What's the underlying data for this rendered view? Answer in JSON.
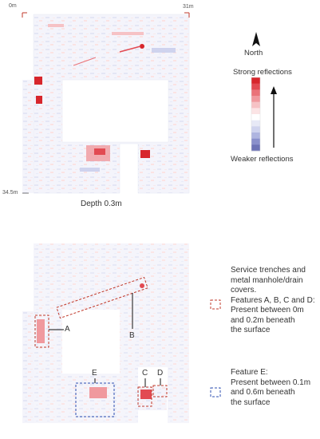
{
  "top_map": {
    "origin_label": "0m",
    "width_label": "31m",
    "height_label": "34.5m",
    "caption": "Depth 0.3m"
  },
  "north": {
    "label": "North"
  },
  "colorbar": {
    "top_label": "Strong reflections",
    "bottom_label": "Weaker reflections",
    "colors": [
      "#d7262c",
      "#e24a52",
      "#ea7379",
      "#f0999e",
      "#f6c2c5",
      "#fbe4e5",
      "#ffffff",
      "#e7e9f6",
      "#cfd3ee",
      "#afb5e0",
      "#8a90cb",
      "#6d73b6"
    ]
  },
  "annotations": {
    "feature_labels": [
      "A",
      "B",
      "C",
      "D",
      "E"
    ]
  },
  "legend": {
    "service": {
      "line1": "Service trenches and",
      "line2": "metal manhole/drain",
      "line3": "covers.",
      "line4": "Features A, B, C and D:",
      "line5": "Present between 0m",
      "line6": "and 0.2m beneath",
      "line7": "the surface",
      "color": "#c0392b"
    },
    "feature_e": {
      "line1": "Feature E:",
      "line2": "Present between 0.1m",
      "line3": "and 0.6m beneath",
      "line4": "the surface",
      "color": "#2e4fb0"
    }
  }
}
